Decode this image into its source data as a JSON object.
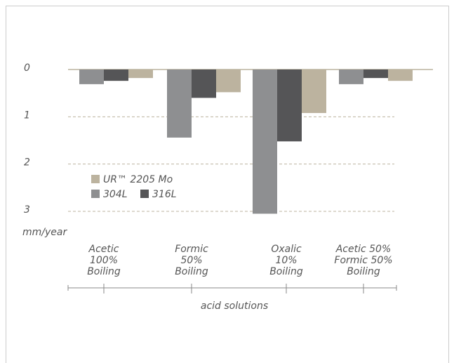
{
  "chart_data": {
    "type": "bar",
    "categories": [
      "Acetic\n100%\nBoiling",
      "Formic\n50%\nBoiling",
      "Oxalic\n10%\nBoiling",
      "Acetic 50%\nFormic 50%\nBoiling"
    ],
    "series": [
      {
        "name": "304L",
        "color": "#8e8f91",
        "values": [
          0.31,
          1.44,
          3.05,
          0.31
        ]
      },
      {
        "name": "316L",
        "color": "#555557",
        "values": [
          0.24,
          0.6,
          1.52,
          0.18
        ]
      },
      {
        "name": "UR™ 2205 Mo",
        "color": "#bcb39f",
        "values": [
          0.18,
          0.48,
          0.92,
          0.24
        ]
      }
    ],
    "y_label": "mm/year",
    "x_label": "acid solutions",
    "ylim": [
      0,
      3
    ],
    "yticks": [
      0,
      1,
      2,
      3
    ],
    "y_inverted": true,
    "grid": true
  }
}
